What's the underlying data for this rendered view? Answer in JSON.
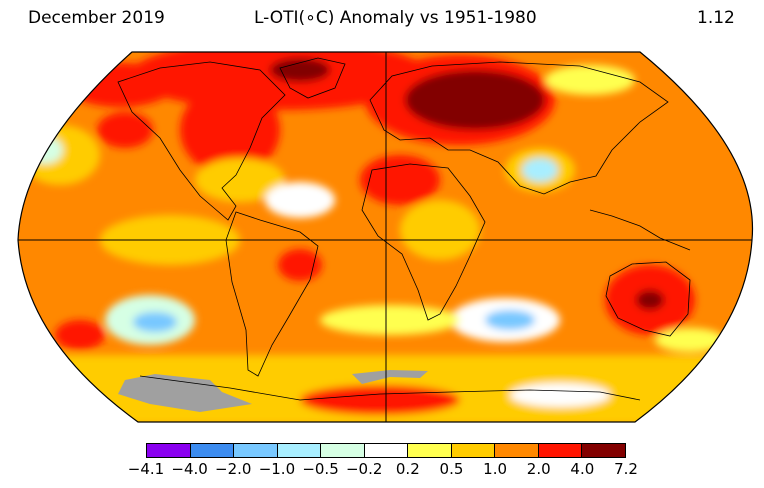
{
  "header": {
    "month": "December 2019",
    "title": "L-OTI(∘C) Anomaly vs 1951-1980",
    "global_mean": "1.12"
  },
  "colorbar": {
    "bins": [
      {
        "color": "#8a00f0"
      },
      {
        "color": "#3c8cf0"
      },
      {
        "color": "#78c8ff"
      },
      {
        "color": "#a8eeff"
      },
      {
        "color": "#d6ffe4"
      },
      {
        "color": "#ffffff"
      },
      {
        "color": "#ffff50"
      },
      {
        "color": "#ffcc00"
      },
      {
        "color": "#ff8800"
      },
      {
        "color": "#ff1400"
      },
      {
        "color": "#820000"
      }
    ],
    "tick_labels": [
      "−4.1",
      "−4.0",
      "−2.0",
      "−1.0",
      "−0.5",
      "−0.2",
      "0.2",
      "0.5",
      "1.0",
      "2.0",
      "4.0",
      "7.2"
    ]
  },
  "map": {
    "projection": "Robinson",
    "no_data_color": "#a0a0a0"
  }
}
